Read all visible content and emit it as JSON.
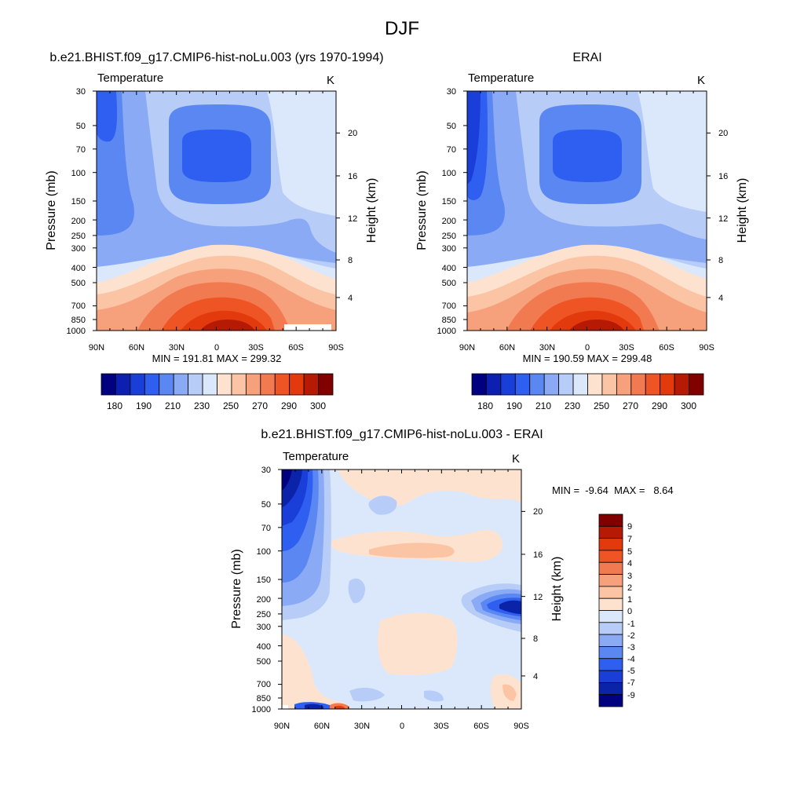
{
  "figure_title": "DJF",
  "colors": {
    "abs_levels": [
      "#000080",
      "#0d1fb0",
      "#1a3fd9",
      "#2f5ff0",
      "#5b87f2",
      "#8aaaf5",
      "#b7cdf8",
      "#dbe8fb",
      "#fde3cf",
      "#fbc4a4",
      "#f6a07c",
      "#f27a50",
      "#ef5424",
      "#e23a0d",
      "#b61a04",
      "#800000"
    ],
    "diff_levels": [
      "#000080",
      "#0b23a8",
      "#1a3fd9",
      "#2f5ff0",
      "#5b87f2",
      "#8aaaf5",
      "#b7cdf8",
      "#dbe8fb",
      "#fde3cf",
      "#fbc4a4",
      "#f6a07c",
      "#f27a50",
      "#ef5424",
      "#e23a0d",
      "#b61a04",
      "#800000"
    ]
  },
  "chart_data": [
    {
      "type": "heatmap",
      "title": "b.e21.BHIST.f09_g17.CMIP6-hist-noLu.003 (yrs 1970-1994)",
      "left_string": "Temperature",
      "right_string": "K",
      "ylabel": "Pressure (mb)",
      "ylabel_right": "Height (km)",
      "x_ticks": [
        "90N",
        "60N",
        "30N",
        "0",
        "30S",
        "60S",
        "90S"
      ],
      "y_ticks": [
        "30",
        "50",
        "70",
        "100",
        "150",
        "200",
        "250",
        "300",
        "400",
        "500",
        "700",
        "850",
        "1000"
      ],
      "y_ticks_right": [
        "20",
        "16",
        "12",
        "8",
        "4"
      ],
      "stats": "MIN = 191.81  MAX = 299.32",
      "colorbar_labels": [
        "180",
        "190",
        "210",
        "230",
        "250",
        "270",
        "290",
        "300"
      ],
      "xlim": [
        90,
        -90
      ],
      "ylim": [
        1000,
        30
      ]
    },
    {
      "type": "heatmap",
      "title": "ERAI",
      "left_string": "Temperature",
      "right_string": "K",
      "ylabel": "Pressure (mb)",
      "ylabel_right": "Height (km)",
      "x_ticks": [
        "90N",
        "60N",
        "30N",
        "0",
        "30S",
        "60S",
        "90S"
      ],
      "y_ticks": [
        "30",
        "50",
        "70",
        "100",
        "150",
        "200",
        "250",
        "300",
        "400",
        "500",
        "700",
        "850",
        "1000"
      ],
      "y_ticks_right": [
        "20",
        "16",
        "12",
        "8",
        "4"
      ],
      "stats": "MIN = 190.59  MAX = 299.48",
      "colorbar_labels": [
        "180",
        "190",
        "210",
        "230",
        "250",
        "270",
        "290",
        "300"
      ],
      "xlim": [
        90,
        -90
      ],
      "ylim": [
        1000,
        30
      ]
    },
    {
      "type": "heatmap",
      "title": "b.e21.BHIST.f09_g17.CMIP6-hist-noLu.003 - ERAI",
      "left_string": "Temperature",
      "right_string": "K",
      "ylabel": "Pressure (mb)",
      "ylabel_right": "Height (km)",
      "x_ticks": [
        "90N",
        "60N",
        "30N",
        "0",
        "30S",
        "60S",
        "90S"
      ],
      "y_ticks": [
        "30",
        "50",
        "70",
        "100",
        "150",
        "200",
        "250",
        "300",
        "400",
        "500",
        "700",
        "850",
        "1000"
      ],
      "y_ticks_right": [
        "20",
        "16",
        "12",
        "8",
        "4"
      ],
      "stats": "MIN =  -9.64  MAX =   8.64",
      "colorbar_labels": [
        "9",
        "7",
        "5",
        "4",
        "3",
        "2",
        "1",
        "0",
        "-1",
        "-2",
        "-3",
        "-4",
        "-5",
        "-7",
        "-9"
      ],
      "xlim": [
        90,
        -90
      ],
      "ylim": [
        1000,
        30
      ]
    }
  ]
}
